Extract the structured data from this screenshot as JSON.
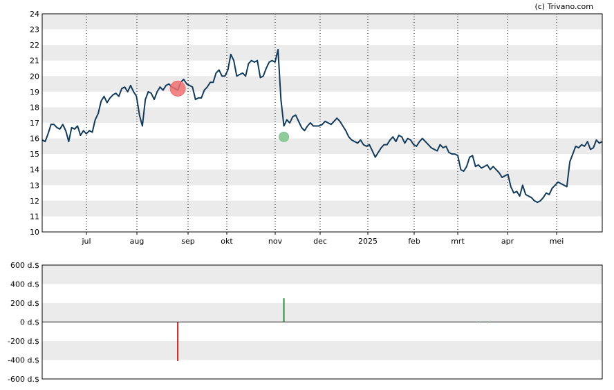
{
  "credit": "(c) Trivano.com",
  "colors": {
    "price_line": "#123a5a",
    "band": "#ebebeb",
    "sell_marker": "#f07070",
    "buy_marker": "#7cc48a",
    "sell_bar": "#cc2222",
    "buy_bar": "#2e8b3e"
  },
  "chart_data": [
    {
      "type": "line",
      "title": "",
      "ylabel": "",
      "ylim": [
        10,
        24
      ],
      "y_ticks": [
        "10",
        "11",
        "12",
        "13",
        "14",
        "15",
        "16",
        "17",
        "18",
        "19",
        "20",
        "21",
        "22",
        "23",
        "24"
      ],
      "x_tick_labels": [
        "jul",
        "aug",
        "sep",
        "okt",
        "nov",
        "dec",
        "2025",
        "feb",
        "mrt",
        "apr",
        "mei"
      ],
      "grid": "alternating horizontal bands, dotted vertical lines at month starts",
      "series": [
        {
          "values": [
            15.9,
            15.8,
            16.3,
            16.9,
            16.9,
            16.7,
            16.6,
            16.9,
            16.5,
            15.8,
            16.7,
            16.6,
            16.8,
            16.2,
            16.5,
            16.3,
            16.5,
            16.4,
            17.2,
            17.6,
            18.4,
            18.7,
            18.3,
            18.6,
            18.8,
            18.9,
            18.7,
            19.2,
            19.3,
            19.0,
            19.4,
            19.0,
            18.7,
            17.5,
            16.8,
            18.5,
            19.0,
            18.9,
            18.5,
            19.0,
            19.3,
            19.1,
            19.4,
            19.5,
            19.3,
            19.2,
            19.1,
            19.6,
            19.8,
            19.5,
            19.4,
            19.3,
            18.5,
            18.6,
            18.6,
            19.1,
            19.3,
            19.6,
            19.6,
            20.2,
            20.4,
            20.0,
            20.0,
            20.4,
            21.4,
            21.0,
            20.0,
            20.1,
            20.2,
            20.0,
            20.8,
            21.0,
            20.9,
            21.0,
            19.9,
            20.0,
            20.5,
            20.9,
            21.0,
            20.9,
            21.7,
            18.5,
            16.8,
            17.2,
            17.0,
            17.4,
            17.5,
            17.1,
            16.7,
            16.5,
            16.8,
            17.0,
            16.8,
            16.8,
            16.8,
            16.9,
            17.1,
            17.0,
            16.9,
            17.1,
            17.3,
            17.1,
            16.8,
            16.5,
            16.1,
            15.9,
            15.8,
            15.7,
            15.9,
            15.6,
            15.5,
            15.6,
            15.2,
            14.8,
            15.1,
            15.4,
            15.6,
            15.6,
            15.9,
            16.1,
            15.8,
            16.2,
            16.1,
            15.7,
            16.0,
            15.9,
            15.6,
            15.5,
            15.8,
            16.0,
            15.8,
            15.6,
            15.4,
            15.3,
            15.2,
            15.6,
            15.4,
            15.5,
            15.1,
            15.0,
            15.0,
            14.9,
            14.0,
            13.9,
            14.2,
            14.8,
            14.9,
            14.2,
            14.3,
            14.1,
            14.2,
            14.3,
            14.0,
            14.2,
            14.0,
            13.8,
            13.5,
            13.6,
            13.7,
            12.9,
            12.5,
            12.6,
            12.3,
            13.0,
            12.4,
            12.3,
            12.2,
            12.0,
            11.9,
            12.0,
            12.2,
            12.5,
            12.4,
            12.8,
            13.0,
            13.2,
            13.1,
            13.0,
            12.9,
            14.5,
            15.0,
            15.5,
            15.4,
            15.6,
            15.5,
            15.8,
            15.3,
            15.4,
            15.9,
            15.7,
            15.8
          ]
        }
      ],
      "markers": [
        {
          "type": "sell",
          "index": 46,
          "value": 19.2,
          "size": "large"
        },
        {
          "type": "buy",
          "index": 82,
          "value": 16.1,
          "size": "small"
        }
      ]
    },
    {
      "type": "bar",
      "title": "",
      "ylabel": "",
      "ylim": [
        -600,
        600
      ],
      "y_ticks": [
        "600 d.$",
        "400 d.$",
        "200 d.$",
        "0 d.$",
        "-200 d.$",
        "-400 d.$",
        "-600 d.$"
      ],
      "bars": [
        {
          "index": 46,
          "value": -410,
          "type": "sell"
        },
        {
          "index": 82,
          "value": 250,
          "type": "buy"
        },
        {
          "index": 148,
          "value": 5,
          "type": "buy"
        },
        {
          "index": 151,
          "value": 5,
          "type": "buy"
        }
      ]
    }
  ]
}
